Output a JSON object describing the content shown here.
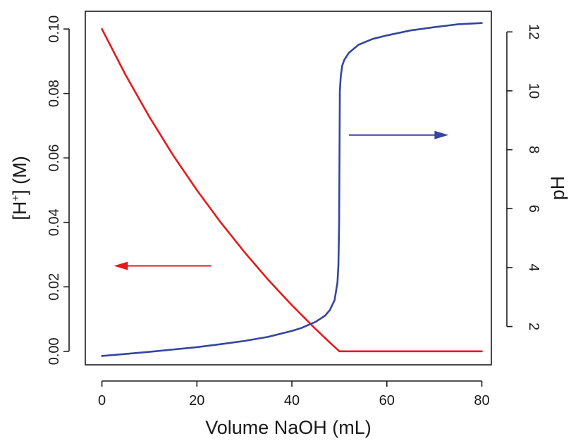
{
  "chart_data": {
    "type": "line",
    "title": "",
    "xlabel": "Volume NaOH (mL)",
    "ylabel_left": {
      "pre": "[H",
      "sup": "+",
      "post": "] (M)"
    },
    "ylabel_right": "pH",
    "xlim": [
      -3.5,
      82
    ],
    "ylim_left": [
      -0.0042,
      0.1055
    ],
    "ylim_right": [
      0.7,
      12.7
    ],
    "x_ticks": [
      0,
      20,
      40,
      60,
      80
    ],
    "x_tick_labels": [
      "0",
      "20",
      "40",
      "60",
      "80"
    ],
    "y_left_ticks": [
      0,
      0.02,
      0.04,
      0.06,
      0.08,
      0.1
    ],
    "y_left_tick_labels": [
      "0.00",
      "0.02",
      "0.04",
      "0.06",
      "0.08",
      "0.10"
    ],
    "y_right_ticks": [
      2,
      4,
      6,
      8,
      10,
      12
    ],
    "y_right_tick_labels": [
      "2",
      "4",
      "6",
      "8",
      "10",
      "12"
    ],
    "grid": false,
    "legend": "none",
    "series": [
      {
        "axis": "left",
        "color": "#e41a1c",
        "points": [
          [
            0,
            0.1
          ],
          [
            5,
            0.0857
          ],
          [
            10,
            0.0727
          ],
          [
            15,
            0.0608
          ],
          [
            20,
            0.05
          ],
          [
            25,
            0.04
          ],
          [
            30,
            0.0308
          ],
          [
            35,
            0.0222
          ],
          [
            40,
            0.0143
          ],
          [
            45,
            0.0069
          ],
          [
            48,
            0.0027
          ],
          [
            50,
            0.0
          ],
          [
            60,
            0.0
          ],
          [
            70,
            0.0
          ],
          [
            80,
            0.0
          ]
        ]
      },
      {
        "axis": "right",
        "color": "#3545a0",
        "points": [
          [
            0,
            1.0
          ],
          [
            5,
            1.07
          ],
          [
            10,
            1.14
          ],
          [
            15,
            1.22
          ],
          [
            20,
            1.3
          ],
          [
            25,
            1.4
          ],
          [
            30,
            1.51
          ],
          [
            35,
            1.65
          ],
          [
            40,
            1.85
          ],
          [
            42,
            1.95
          ],
          [
            45,
            2.16
          ],
          [
            47,
            2.37
          ],
          [
            48,
            2.56
          ],
          [
            49,
            2.9
          ],
          [
            49.6,
            3.5
          ],
          [
            49.8,
            4.1
          ],
          [
            49.95,
            5.5
          ],
          [
            50,
            7.0
          ],
          [
            50.05,
            8.5
          ],
          [
            50.1,
            10.0
          ],
          [
            50.3,
            10.5
          ],
          [
            50.6,
            10.85
          ],
          [
            51,
            11.04
          ],
          [
            52,
            11.29
          ],
          [
            54,
            11.56
          ],
          [
            57,
            11.76
          ],
          [
            60,
            11.88
          ],
          [
            65,
            12.05
          ],
          [
            70,
            12.16
          ],
          [
            75,
            12.26
          ],
          [
            80,
            12.3
          ]
        ]
      }
    ],
    "annotations": [
      {
        "type": "arrow",
        "direction": "left",
        "color": "#e41a1c",
        "from": [
          23,
          0.0265
        ],
        "to": [
          2.5,
          0.0265
        ],
        "axis": "left"
      },
      {
        "type": "arrow",
        "direction": "right",
        "color": "#3545a0",
        "from": [
          52,
          8.5
        ],
        "to": [
          73,
          8.5
        ],
        "axis": "right"
      }
    ]
  }
}
